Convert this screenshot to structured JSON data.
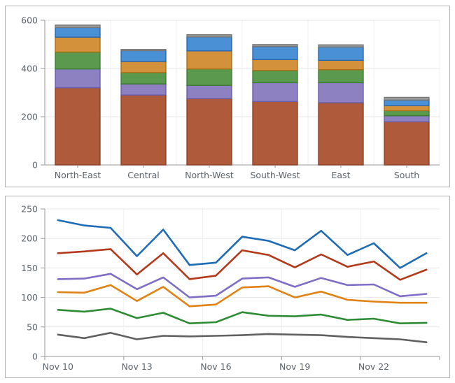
{
  "page": {
    "background": "#ffffff",
    "panel_border_color": "#b0b0b0"
  },
  "axis_style": {
    "axis_color": "#9a9a9a",
    "grid_color": "#e7e7e7",
    "vgrid_color": "#efefef",
    "tick_text_color": "#5c646c",
    "font_size": 12.5
  },
  "chart_data": [
    {
      "type": "bar",
      "stacked": true,
      "title": "",
      "xlabel": "",
      "ylabel": "",
      "legend": "none",
      "grid": true,
      "ylim": [
        0,
        600
      ],
      "yticks": [
        0,
        200,
        400,
        600
      ],
      "ytick_labels": [
        "0",
        "200",
        "400",
        "600"
      ],
      "categories": [
        "North-East",
        "Central",
        "North-West",
        "South-West",
        "East",
        "South"
      ],
      "series": [
        {
          "name": "segment-brown",
          "color": "#AF5B3B",
          "border": "#8A4026",
          "values": [
            320,
            290,
            275,
            263,
            258,
            179
          ]
        },
        {
          "name": "segment-purple",
          "color": "#8D81C1",
          "border": "#685CA8",
          "values": [
            78,
            46,
            55,
            78,
            83,
            25
          ]
        },
        {
          "name": "segment-green",
          "color": "#5B9A4E",
          "border": "#3D7B33",
          "values": [
            70,
            47,
            68,
            51,
            54,
            21
          ]
        },
        {
          "name": "segment-orange",
          "color": "#D3913B",
          "border": "#AC6E14",
          "values": [
            62,
            46,
            75,
            45,
            39,
            21
          ]
        },
        {
          "name": "segment-blue",
          "color": "#4A90D5",
          "border": "#2A66AC",
          "values": [
            40,
            45,
            58,
            54,
            55,
            23
          ]
        },
        {
          "name": "segment-gray",
          "color": "#9D9D9D",
          "border": "#777777",
          "values": [
            10,
            5,
            9,
            8,
            9,
            11
          ]
        }
      ],
      "bar_totals": [
        580,
        479,
        540,
        499,
        498,
        280
      ]
    },
    {
      "type": "line",
      "title": "",
      "xlabel": "",
      "ylabel": "",
      "legend": "none",
      "grid": true,
      "ylim": [
        0,
        250
      ],
      "yticks": [
        0,
        50,
        100,
        150,
        200,
        250
      ],
      "ytick_labels": [
        "0",
        "50",
        "100",
        "150",
        "200",
        "250"
      ],
      "n_points": 15,
      "x_tick_labels": [
        "Nov 10",
        "Nov 13",
        "Nov 16",
        "Nov 19",
        "Nov 22"
      ],
      "x_tick_indices": [
        0,
        3,
        6,
        9,
        12
      ],
      "series": [
        {
          "name": "line-blue",
          "color": "#1E6CB4",
          "values": [
            231,
            222,
            218,
            170,
            215,
            155,
            159,
            203,
            196,
            180,
            213,
            172,
            192,
            150,
            175
          ]
        },
        {
          "name": "line-red",
          "color": "#B23A1B",
          "values": [
            175,
            178,
            182,
            139,
            175,
            131,
            137,
            180,
            172,
            151,
            173,
            152,
            161,
            130,
            147
          ]
        },
        {
          "name": "line-purple",
          "color": "#7F6EC4",
          "values": [
            131,
            132,
            140,
            114,
            134,
            100,
            103,
            132,
            134,
            118,
            133,
            121,
            122,
            102,
            106
          ]
        },
        {
          "name": "line-orange",
          "color": "#E08214",
          "values": [
            109,
            108,
            121,
            94,
            118,
            85,
            88,
            117,
            119,
            100,
            110,
            96,
            93,
            91,
            91
          ]
        },
        {
          "name": "line-green",
          "color": "#2F8C35",
          "values": [
            79,
            76,
            81,
            65,
            74,
            56,
            58,
            75,
            69,
            68,
            71,
            62,
            64,
            56,
            57
          ]
        },
        {
          "name": "line-gray",
          "color": "#606060",
          "values": [
            37,
            31,
            40,
            29,
            35,
            34,
            35,
            36,
            38,
            37,
            36,
            33,
            31,
            29,
            24
          ]
        }
      ]
    }
  ]
}
